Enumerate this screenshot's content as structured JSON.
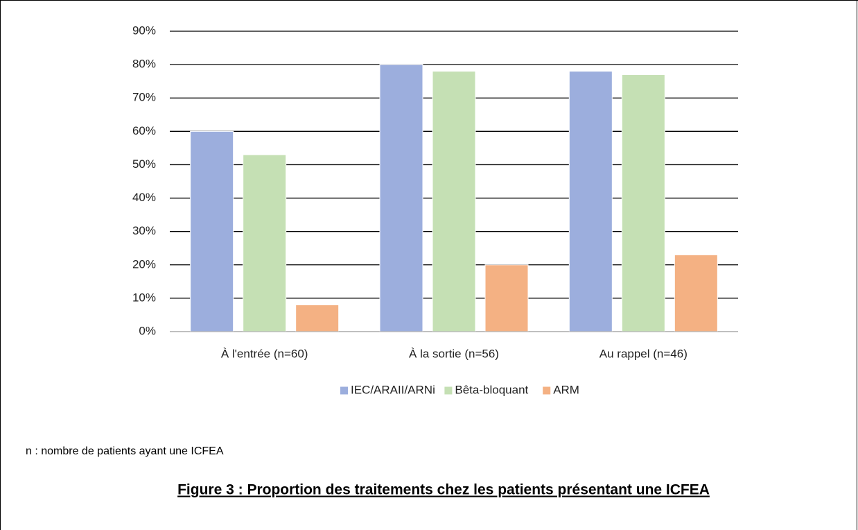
{
  "chart_data": {
    "type": "bar",
    "categories": [
      "À l'entrée (n=60)",
      "À la sortie (n=56)",
      "Au rappel (n=46)"
    ],
    "series": [
      {
        "name": "IEC/ARAII/ARNi",
        "color": "#9caedd",
        "values": [
          60,
          80,
          78
        ]
      },
      {
        "name": "Bêta-bloquant",
        "color": "#c5e0b4",
        "values": [
          53,
          78,
          77
        ]
      },
      {
        "name": "ARM",
        "color": "#f4b183",
        "values": [
          8,
          20,
          23
        ]
      }
    ],
    "ylim": [
      0,
      90
    ],
    "yticks": [
      {
        "value": 0,
        "label": "0%"
      },
      {
        "value": 10,
        "label": "10%"
      },
      {
        "value": 20,
        "label": "20%"
      },
      {
        "value": 30,
        "label": "30%"
      },
      {
        "value": 40,
        "label": "40%"
      },
      {
        "value": 50,
        "label": "50%"
      },
      {
        "value": 60,
        "label": "60%"
      },
      {
        "value": 70,
        "label": "70%"
      },
      {
        "value": 80,
        "label": "80%"
      },
      {
        "value": 90,
        "label": "90%"
      }
    ],
    "grid": true,
    "legend": "bottom"
  },
  "note": "n : nombre de patients ayant une ICFEA",
  "caption": "Figure 3 : Proportion des traitements chez les patients présentant une ICFEA"
}
